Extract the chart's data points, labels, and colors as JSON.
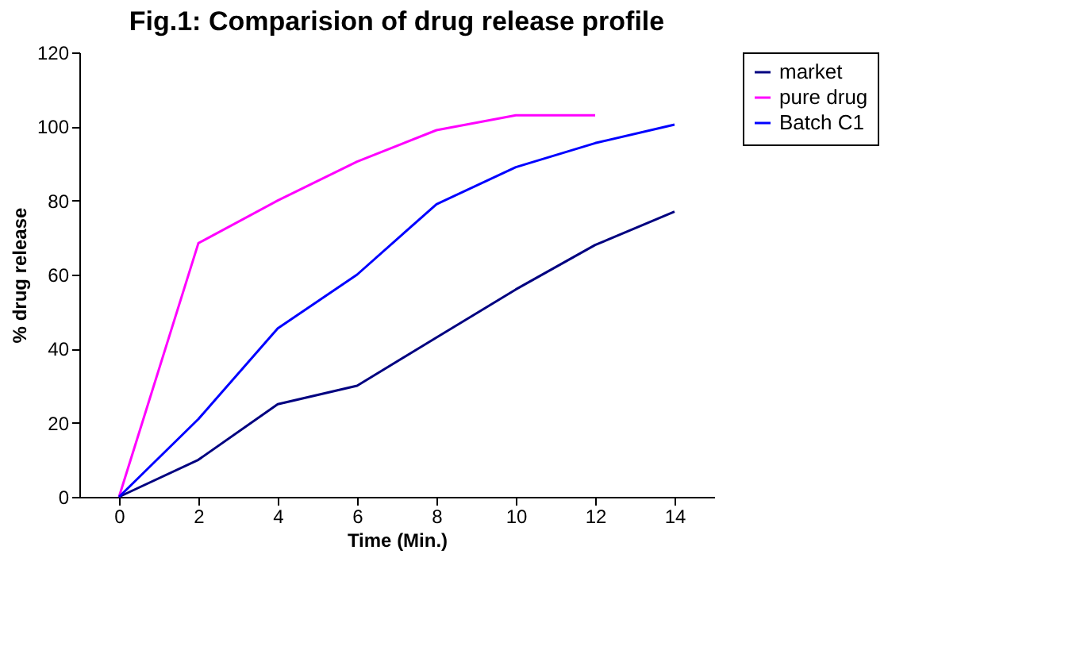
{
  "chart_data": {
    "type": "line",
    "title": "Fig.1: Comparision of drug release profile",
    "xlabel": "Time (Min.)",
    "ylabel": "% drug release",
    "categories": [
      "0",
      "2",
      "4",
      "6",
      "8",
      "10",
      "12",
      "14"
    ],
    "series": [
      {
        "name": "market",
        "color": "#000080",
        "values": [
          0,
          10,
          25,
          30,
          43,
          56,
          68,
          77
        ]
      },
      {
        "name": "pure drug",
        "color": "#ff00ff",
        "values": [
          0,
          68.5,
          80,
          90.5,
          99,
          103,
          103,
          null
        ]
      },
      {
        "name": "Batch C1",
        "color": "#0000ff",
        "values": [
          0,
          21,
          45.5,
          60,
          79,
          89,
          95.5,
          100.5
        ]
      }
    ],
    "ylim": [
      0,
      120
    ],
    "yticks": [
      0,
      20,
      40,
      60,
      80,
      100,
      120
    ],
    "grid": false,
    "legend": "right",
    "marker": "none",
    "line_style": "solid"
  }
}
